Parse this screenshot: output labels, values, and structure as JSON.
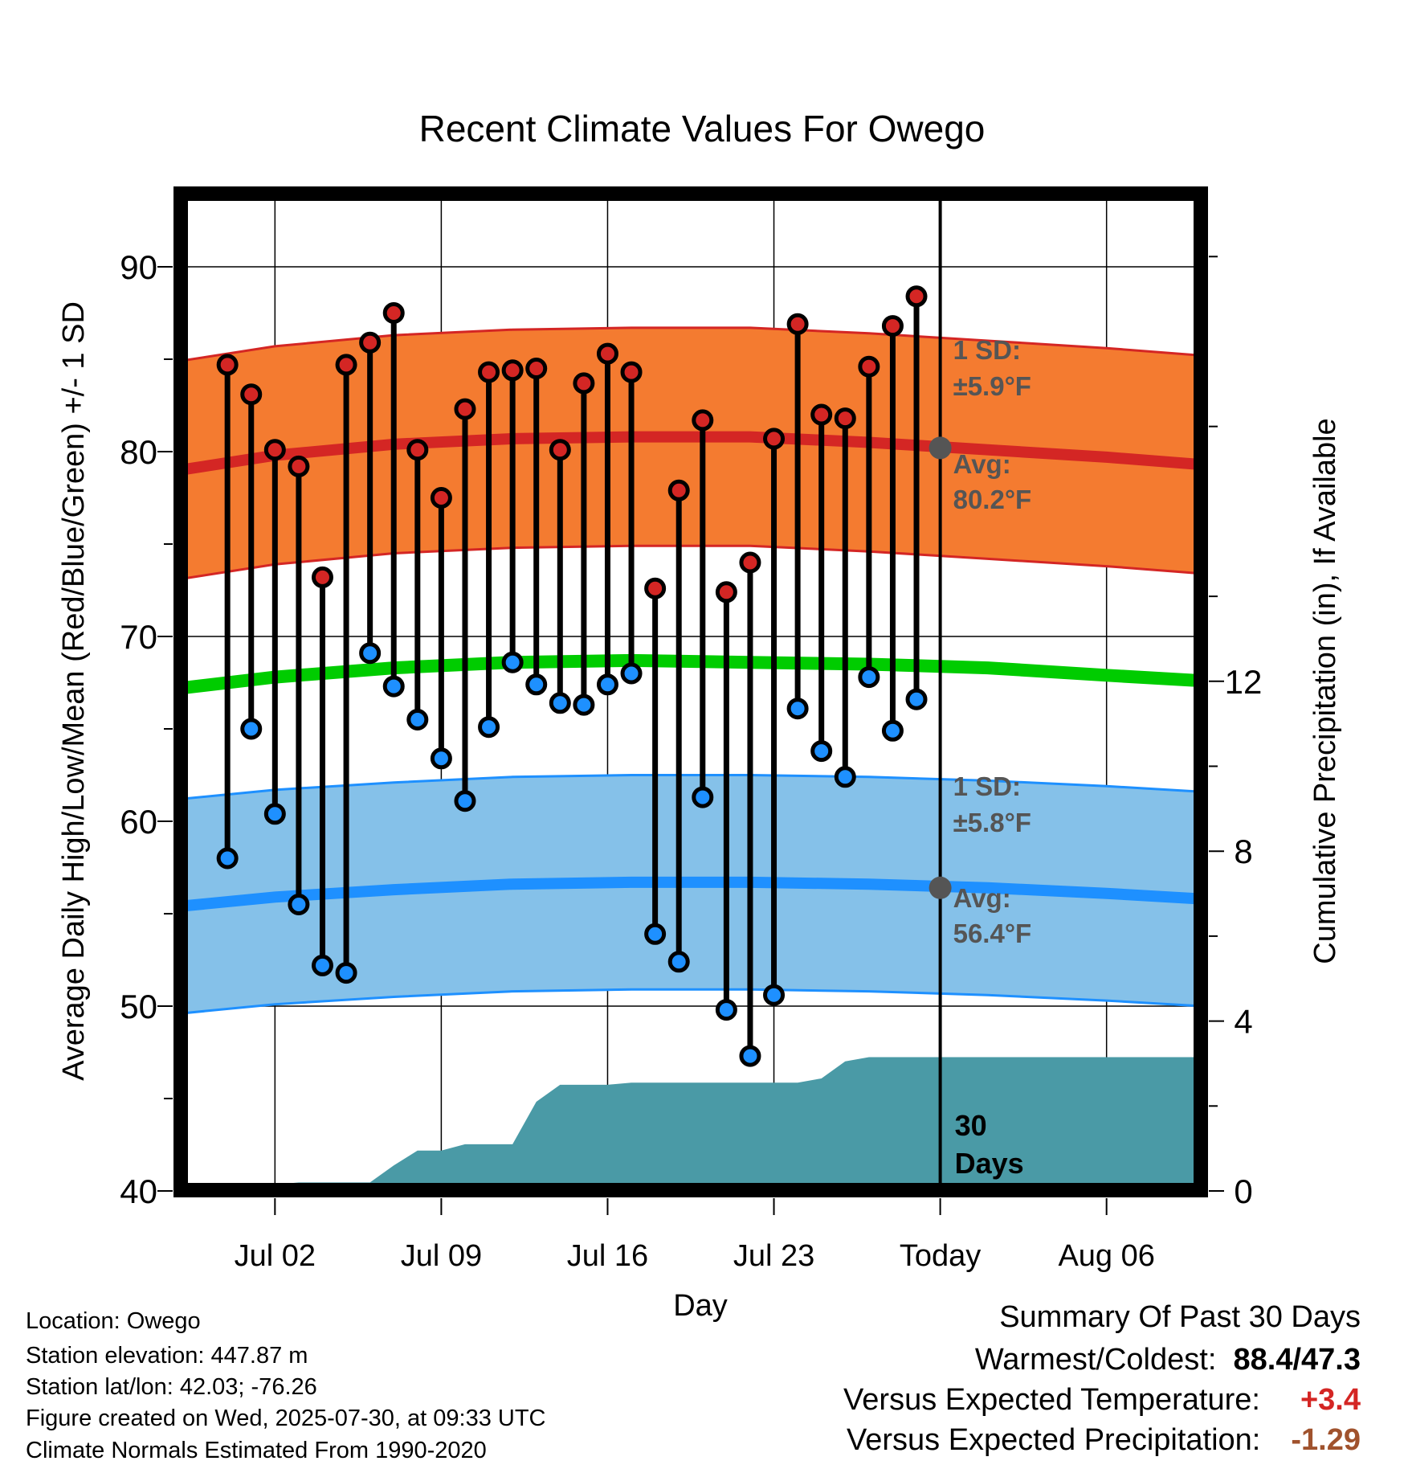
{
  "chart_data": {
    "type": "line",
    "title": "Recent Climate Values For Owego",
    "xlabel": "Day",
    "ylabel_left": "Average Daily High/Low/Mean (Red/Blue/Green) +/- 1 SD",
    "ylabel_right": "Cumulative Precipitation (in), If Available",
    "x_range": [
      "2025-06-28",
      "2025-08-10"
    ],
    "y_left_range": [
      40,
      94
    ],
    "y_right_range": [
      0,
      23.5
    ],
    "y_left_ticks": [
      40,
      50,
      60,
      70,
      80,
      90
    ],
    "y_right_ticks": [
      0,
      4,
      8,
      12
    ],
    "x_ticks": [
      {
        "date": "2025-07-02",
        "label": "Jul 02"
      },
      {
        "date": "2025-07-09",
        "label": "Jul 09"
      },
      {
        "date": "2025-07-16",
        "label": "Jul 16"
      },
      {
        "date": "2025-07-23",
        "label": "Jul 23"
      },
      {
        "date": "2025-07-30",
        "label": "Today"
      },
      {
        "date": "2025-08-06",
        "label": "Aug 06"
      }
    ],
    "today": "2025-07-30",
    "grid": true,
    "days": [
      "2025-06-30",
      "2025-07-01",
      "2025-07-02",
      "2025-07-03",
      "2025-07-04",
      "2025-07-05",
      "2025-07-06",
      "2025-07-07",
      "2025-07-08",
      "2025-07-09",
      "2025-07-10",
      "2025-07-11",
      "2025-07-12",
      "2025-07-13",
      "2025-07-14",
      "2025-07-15",
      "2025-07-16",
      "2025-07-17",
      "2025-07-18",
      "2025-07-19",
      "2025-07-20",
      "2025-07-21",
      "2025-07-22",
      "2025-07-23",
      "2025-07-24",
      "2025-07-25",
      "2025-07-26",
      "2025-07-27",
      "2025-07-28",
      "2025-07-29"
    ],
    "daily_high": [
      84.7,
      83.1,
      80.1,
      79.2,
      73.2,
      84.7,
      85.9,
      87.5,
      80.1,
      77.5,
      82.3,
      84.3,
      84.4,
      84.5,
      80.1,
      83.7,
      85.3,
      84.3,
      72.6,
      77.9,
      81.7,
      72.4,
      74.0,
      80.7,
      86.9,
      82.0,
      81.8,
      84.6,
      86.8,
      88.4
    ],
    "daily_low": [
      58.0,
      65.0,
      60.4,
      55.5,
      52.2,
      51.8,
      69.1,
      67.3,
      65.5,
      63.4,
      61.1,
      65.1,
      68.6,
      67.4,
      66.4,
      66.3,
      67.4,
      68.0,
      53.9,
      52.4,
      61.3,
      49.8,
      47.3,
      50.6,
      66.1,
      63.8,
      62.4,
      67.8,
      64.9,
      66.6
    ],
    "normals": {
      "dates": [
        "2025-06-28",
        "2025-07-02",
        "2025-07-07",
        "2025-07-12",
        "2025-07-17",
        "2025-07-22",
        "2025-07-27",
        "2025-08-01",
        "2025-08-06",
        "2025-08-10"
      ],
      "high_mean": [
        79.0,
        79.8,
        80.4,
        80.7,
        80.8,
        80.8,
        80.5,
        80.1,
        79.7,
        79.3
      ],
      "high_sd": 5.9,
      "low_mean": [
        55.4,
        55.9,
        56.3,
        56.6,
        56.7,
        56.7,
        56.6,
        56.4,
        56.1,
        55.8
      ],
      "low_sd": 5.8,
      "mean": [
        67.2,
        67.8,
        68.3,
        68.6,
        68.7,
        68.6,
        68.5,
        68.3,
        67.9,
        67.6
      ]
    },
    "cumulative_precip": {
      "dates": [
        "2025-06-28",
        "2025-06-29",
        "2025-07-02",
        "2025-07-03",
        "2025-07-06",
        "2025-07-07",
        "2025-07-08",
        "2025-07-09",
        "2025-07-10",
        "2025-07-11",
        "2025-07-12",
        "2025-07-13",
        "2025-07-14",
        "2025-07-15",
        "2025-07-16",
        "2025-07-17",
        "2025-07-23",
        "2025-07-24",
        "2025-07-25",
        "2025-07-26",
        "2025-07-27",
        "2025-07-30",
        "2025-08-10"
      ],
      "values": [
        0.0,
        0.1,
        0.15,
        0.2,
        0.2,
        0.6,
        0.95,
        0.95,
        1.1,
        1.1,
        1.1,
        2.1,
        2.5,
        2.5,
        2.5,
        2.55,
        2.55,
        2.55,
        2.65,
        3.05,
        3.15,
        3.15,
        3.15
      ]
    },
    "annotations": {
      "high_sd_label": "1 SD:",
      "high_sd_value": "±5.9°F",
      "high_avg_label": "Avg:",
      "high_avg_value": "80.2°F",
      "high_avg": 80.2,
      "low_sd_label": "1 SD:",
      "low_sd_value": "±5.8°F",
      "low_avg_label": "Avg:",
      "low_avg_value": "56.4°F",
      "low_avg": 56.4,
      "days_label_1": "30",
      "days_label_2": "Days"
    },
    "colors": {
      "high_band": "#f47b30",
      "high_line": "#d42624",
      "low_band": "#85c1e9",
      "low_line": "#1e90ff",
      "mean_line": "#00cc00",
      "precip": "#4a9aa6",
      "marker_high": "#d42624",
      "marker_low": "#1e90ff",
      "avg_marker": "#555555",
      "annotation_text": "#555555"
    }
  },
  "footer": {
    "location": "Location: Owego",
    "elevation": "Station elevation: 447.87 m",
    "latlon": "Station lat/lon: 42.03; -76.26",
    "created": "Figure created on Wed, 2025-07-30, at 09:33 UTC",
    "normals": "Climate Normals Estimated From 1990-2020"
  },
  "summary": {
    "title": "Summary Of Past 30 Days",
    "warmest_label": "Warmest/Coldest:",
    "warmest_value": "88.4/47.3",
    "temp_label": "Versus Expected Temperature:",
    "temp_value": "+3.4",
    "temp_color": "#d42624",
    "precip_label": "Versus Expected Precipitation:",
    "precip_value": "-1.29",
    "precip_color": "#a0522d"
  }
}
